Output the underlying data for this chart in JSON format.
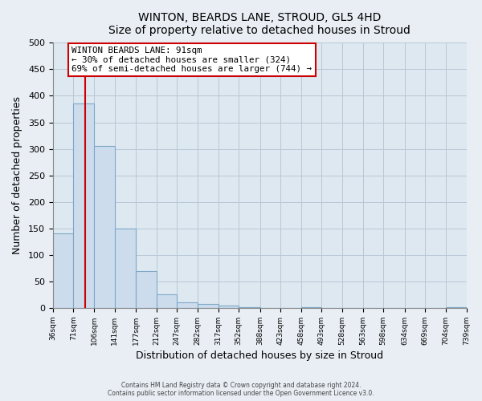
{
  "title": "WINTON, BEARDS LANE, STROUD, GL5 4HD",
  "subtitle": "Size of property relative to detached houses in Stroud",
  "xlabel": "Distribution of detached houses by size in Stroud",
  "ylabel": "Number of detached properties",
  "bar_edges": [
    36,
    71,
    106,
    141,
    177,
    212,
    247,
    282,
    317,
    352,
    388,
    423,
    458,
    493,
    528,
    563,
    598,
    634,
    669,
    704,
    739
  ],
  "bar_heights": [
    140,
    385,
    305,
    150,
    70,
    25,
    10,
    8,
    5,
    1,
    0,
    0,
    1,
    0,
    0,
    0,
    0,
    0,
    0,
    2
  ],
  "bar_color": "#ccdcec",
  "bar_edge_color": "#7ea8c8",
  "subject_line_x": 91,
  "subject_line_color": "#cc0000",
  "annotation_text": "WINTON BEARDS LANE: 91sqm\n← 30% of detached houses are smaller (324)\n69% of semi-detached houses are larger (744) →",
  "annotation_box_color": "#ffffff",
  "annotation_box_edge": "#cc0000",
  "ylim": [
    0,
    500
  ],
  "xlim": [
    36,
    739
  ],
  "tick_labels": [
    "36sqm",
    "71sqm",
    "106sqm",
    "141sqm",
    "177sqm",
    "212sqm",
    "247sqm",
    "282sqm",
    "317sqm",
    "352sqm",
    "388sqm",
    "423sqm",
    "458sqm",
    "493sqm",
    "528sqm",
    "563sqm",
    "598sqm",
    "634sqm",
    "669sqm",
    "704sqm",
    "739sqm"
  ],
  "footer_line1": "Contains HM Land Registry data © Crown copyright and database right 2024.",
  "footer_line2": "Contains public sector information licensed under the Open Government Licence v3.0.",
  "background_color": "#e8eef4",
  "plot_background_color": "#dde8f0",
  "grid_color": "#b8c8d8"
}
